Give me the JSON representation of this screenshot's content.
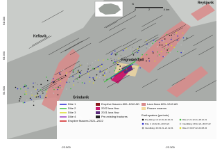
{
  "map": {
    "places": {
      "reykjavik": "Reykjavík",
      "keflavik": "Keflavík",
      "fagradalsfjall": "Fagradalsfjall",
      "grindavik": "Grindavík"
    },
    "scale": {
      "zero": "0",
      "mid": "2",
      "end": "4 km"
    },
    "north": "N",
    "lat_labels": [
      "64.000",
      "63.950",
      "63.900"
    ],
    "lon_labels": [
      "-22.500",
      "-22.300"
    ]
  },
  "legend": {
    "lines": [
      {
        "label": "Dike 1",
        "color": "#2b2bd0"
      },
      {
        "label": "Dike 2",
        "color": "#3fbf3f"
      },
      {
        "label": "Dike 3",
        "color": "#d9d92a"
      },
      {
        "label": "Dike 4",
        "color": "#9a3fc4"
      },
      {
        "label": "Eruptive fissures 2021–2022",
        "color": "#d02020"
      }
    ],
    "areas": [
      {
        "label": "Eruptive fissures 800–1240 AD",
        "color": "#8a1a1a"
      },
      {
        "label": "2022 lava flow",
        "color": "#c81c6e"
      },
      {
        "label": "2021 lava flow",
        "color": "#5a2a7a"
      },
      {
        "label": "Pre-existing fractures",
        "color": "#222222"
      }
    ],
    "swarms": [
      {
        "label": "Lava flows 800–1240 AD",
        "color": "#d98a8a"
      },
      {
        "label": "Fissure swarms",
        "color": "#f2d9a0"
      }
    ],
    "earthquakes_title": "Earthquakes (periods)",
    "earthquakes": [
      {
        "label": "Pre-diking: 10.12.19–24.02.21",
        "color": "#111111"
      },
      {
        "label": "Dike 1: 24.02.21–20.03.21",
        "color": "#2b2bd0"
      },
      {
        "label": "Interdiking: 20.03.21–21.12.21",
        "color": "#888888"
      },
      {
        "label": "Dike 2: 21.12.21–28.12.21",
        "color": "#3fbf3f"
      },
      {
        "label": "Interdiking: 28.12.21–30.07.22",
        "color": "#bbbbbb"
      },
      {
        "label": "Dike 3: 30.07.22–04.08.22",
        "color": "#d9d92a"
      }
    ]
  }
}
